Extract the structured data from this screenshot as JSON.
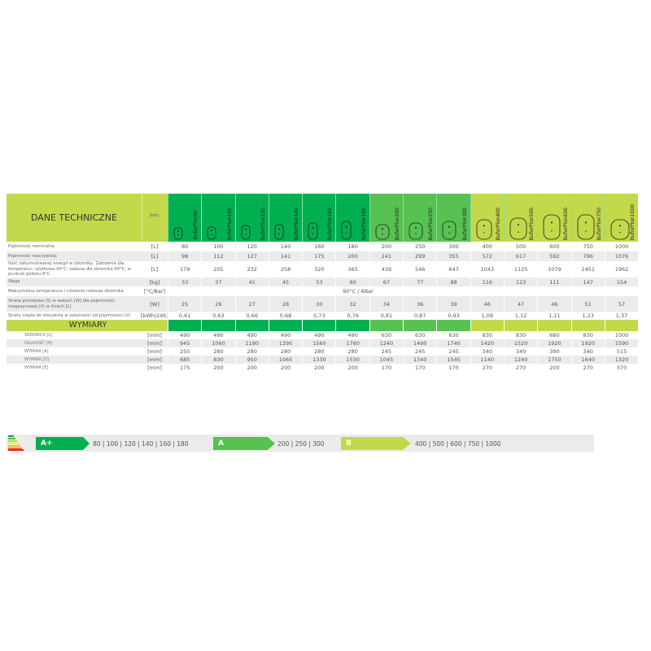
{
  "colors": {
    "dark_green": "#00b050",
    "mid_green": "#57c152",
    "lime": "#c3d84a",
    "row_grey": "#ebebeb"
  },
  "header": {
    "title": "DANE TECHNICZNE",
    "unit_label": "Jedn."
  },
  "products": [
    {
      "name": "BuforPlon80",
      "group": "dark"
    },
    {
      "name": "BuforPlon100",
      "group": "dark"
    },
    {
      "name": "BuforPlon120",
      "group": "dark"
    },
    {
      "name": "BuforPlon140",
      "group": "dark"
    },
    {
      "name": "BuforPlon160",
      "group": "dark"
    },
    {
      "name": "BuforPlon180",
      "group": "dark"
    },
    {
      "name": "BuforPlon200",
      "group": "mid"
    },
    {
      "name": "BuforPlon250",
      "group": "mid"
    },
    {
      "name": "BuforPlon300",
      "group": "mid"
    },
    {
      "name": "BuforPlon400",
      "group": "lime"
    },
    {
      "name": "BuforPlon500",
      "group": "lime"
    },
    {
      "name": "BuforPlon600",
      "group": "lime"
    },
    {
      "name": "BuforPlon750",
      "group": "lime"
    },
    {
      "name": "BuforPlon1000",
      "group": "lime"
    }
  ],
  "tech_rows": [
    {
      "label": "Pojemność nominalna",
      "unit": "[L]",
      "values": [
        "80",
        "100",
        "120",
        "140",
        "160",
        "180",
        "200",
        "250",
        "300",
        "400",
        "500",
        "600",
        "750",
        "1000"
      ]
    },
    {
      "label": "Pojemność rzeczywista",
      "unit": "[L]",
      "values": [
        "98",
        "112",
        "127",
        "141",
        "175",
        "200",
        "241",
        "299",
        "355",
        "572",
        "617",
        "592",
        "796",
        "1076"
      ]
    },
    {
      "label": "Ilość zakumulowanej energii w zbiorniku. Założenia dla temperatur: użytkowa 40°C; zadana dla zbiornika 90°C; w punkcie poboru 8°C",
      "unit": "[L]",
      "values": [
        "179",
        "205",
        "232",
        "258",
        "320",
        "365",
        "439",
        "546",
        "647",
        "1043",
        "1125",
        "1079",
        "1451",
        "1962"
      ]
    },
    {
      "label": "Waga",
      "unit": "[kg]",
      "values": [
        "33",
        "37",
        "41",
        "45",
        "53",
        "60",
        "67",
        "77",
        "88",
        "116",
        "123",
        "111",
        "147",
        "154"
      ]
    },
    {
      "label": "Maksymalna temperatura i ciśnienie robocze zbiornika",
      "unit": "[°C/Bar]",
      "span": "90°C / 6Bar"
    },
    {
      "label": "Strata postojowa (S) w watach [W] dla pojemności magazynowej (V) w litrach [L]",
      "unit": "[W]",
      "values": [
        "25",
        "26",
        "27",
        "28",
        "30",
        "32",
        "34",
        "36",
        "39",
        "46",
        "47",
        "46",
        "51",
        "57"
      ]
    },
    {
      "label": "Straty ciepła do otoczenia w zależności od pojemności (V)",
      "unit": "[kWh/24h]",
      "values": [
        "0,61",
        "0,63",
        "0,66",
        "0,68",
        "0,73",
        "0,76",
        "0,81",
        "0,87",
        "0,93",
        "1,09",
        "1,12",
        "1,11",
        "1,23",
        "1,37"
      ]
    }
  ],
  "dimensions_title": "WYMIARY",
  "dim_rows": [
    {
      "label": "ŚREDNICA [L]",
      "unit": "[mm]",
      "values": [
        "490",
        "490",
        "490",
        "490",
        "490",
        "490",
        "630",
        "630",
        "630",
        "830",
        "830",
        "680",
        "830",
        "1000"
      ]
    },
    {
      "label": "DŁUGOŚĆ [H]",
      "unit": "[mm]",
      "values": [
        "945",
        "1060",
        "1180",
        "1295",
        "1560",
        "1760",
        "1240",
        "1490",
        "1740",
        "1420",
        "1520",
        "1920",
        "1920",
        "1590"
      ]
    },
    {
      "label": "WYMIAR [A]",
      "unit": "[mm]",
      "values": [
        "250",
        "280",
        "280",
        "280",
        "280",
        "280",
        "245",
        "245",
        "245",
        "340",
        "340",
        "390",
        "340",
        "515"
      ]
    },
    {
      "label": "WYMIAR [D]",
      "unit": "[mm]",
      "values": [
        "685",
        "830",
        "950",
        "1065",
        "1330",
        "1530",
        "1045",
        "1340",
        "1545",
        "1140",
        "1240",
        "1750",
        "1640",
        "1320"
      ]
    },
    {
      "label": "WYMIAR [E]",
      "unit": "[mm]",
      "values": [
        "175",
        "200",
        "200",
        "200",
        "200",
        "200",
        "170",
        "170",
        "170",
        "270",
        "270",
        "200",
        "270",
        "370"
      ]
    }
  ],
  "energy": {
    "icon": "energy-scale-icon",
    "classes": [
      {
        "label": "A+",
        "color": "#00b050",
        "models": "80 | 100 |  120 | 140  |  160  |  180"
      },
      {
        "label": "A",
        "color": "#57c152",
        "models": "200  |  250  |  300"
      },
      {
        "label": "B",
        "color": "#c3d84a",
        "models": "400  |  500  |  600  |  750  |  1000"
      }
    ]
  }
}
